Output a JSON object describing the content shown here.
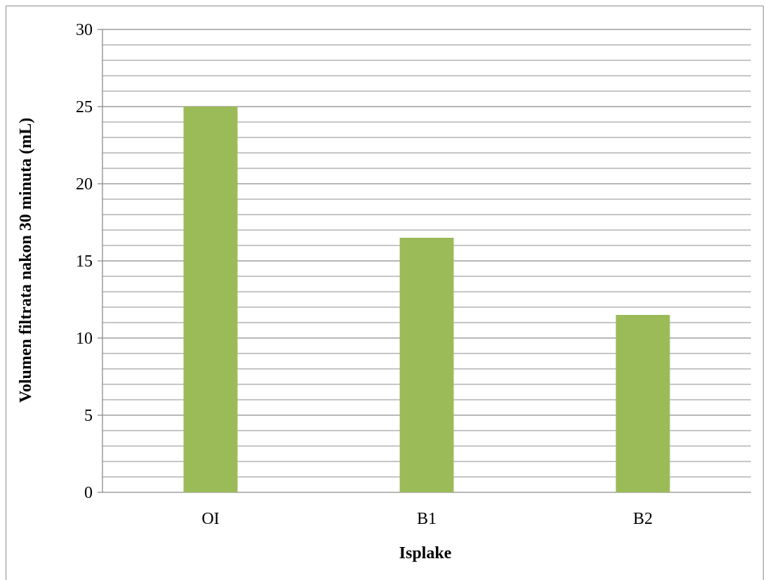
{
  "chart_data": {
    "type": "bar",
    "categories": [
      "OI",
      "B1",
      "B2"
    ],
    "series": [
      {
        "values": [
          25,
          16.5,
          11.5
        ]
      }
    ],
    "title": "",
    "xlabel": "Isplake",
    "ylabel": "Volumen  filtrata  nakon  30  minuta  (mL)",
    "ylim": [
      0,
      30
    ],
    "yticks": [
      0,
      5,
      10,
      15,
      20,
      25,
      30
    ],
    "minor_gridline_step": 1,
    "major_gridline_step": 5,
    "grid": true,
    "legend": "none",
    "bar_color": "#9bbb59",
    "grid_color": "#8c8c8c"
  }
}
